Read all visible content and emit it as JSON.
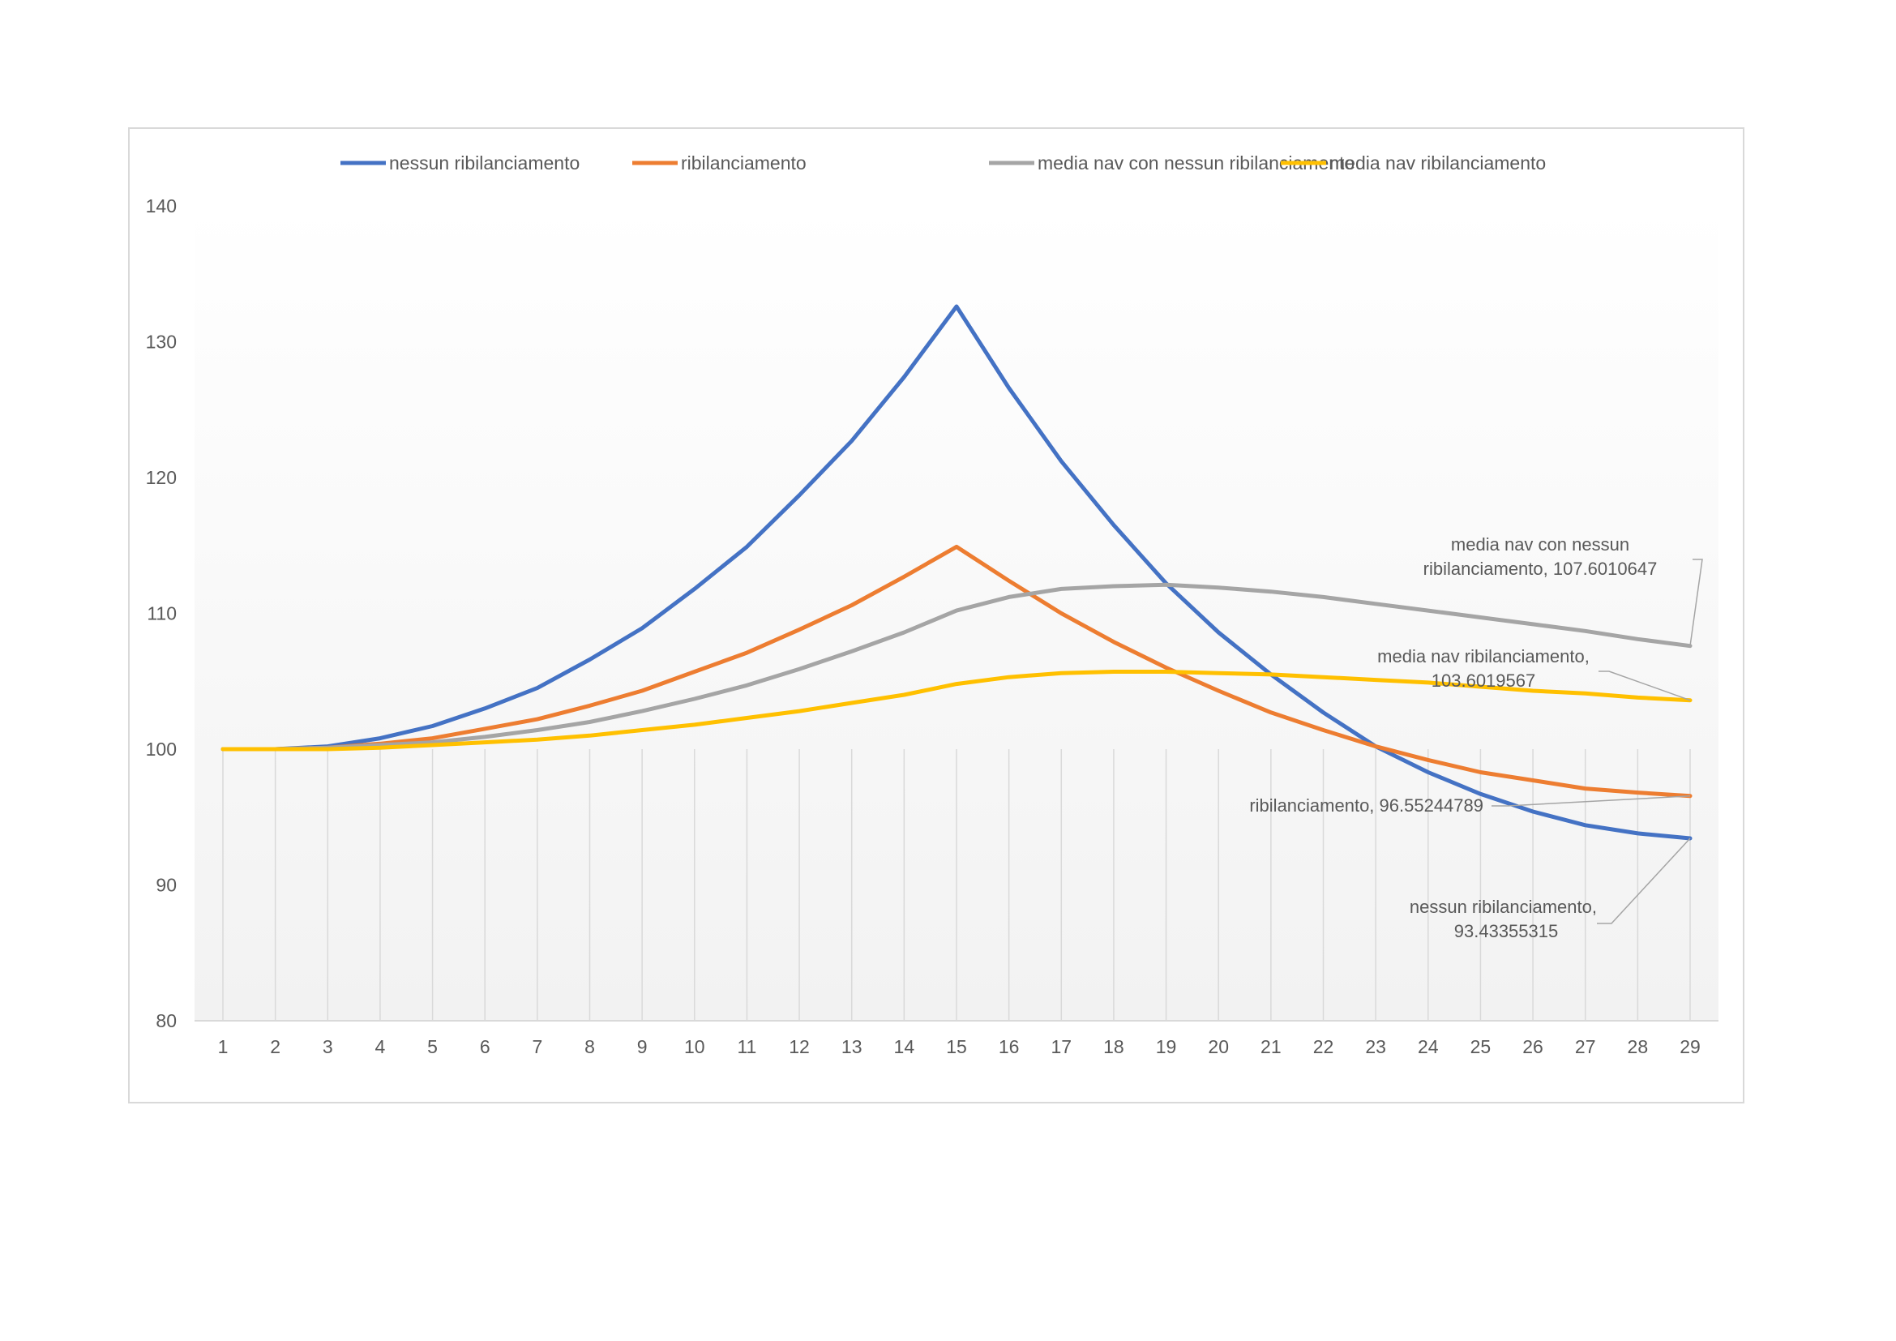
{
  "chart_data": {
    "type": "line",
    "x": [
      1,
      2,
      3,
      4,
      5,
      6,
      7,
      8,
      9,
      10,
      11,
      12,
      13,
      14,
      15,
      16,
      17,
      18,
      19,
      20,
      21,
      22,
      23,
      24,
      25,
      26,
      27,
      28,
      29
    ],
    "ylim": [
      80,
      140
    ],
    "yticks": [
      80,
      90,
      100,
      110,
      120,
      130,
      140
    ],
    "grid": "vertical",
    "legend_position": "top",
    "series": [
      {
        "name": "nessun ribilanciamento",
        "color": "#4472c4",
        "values": [
          100,
          100,
          100.2,
          100.8,
          101.7,
          103.0,
          104.5,
          106.6,
          108.9,
          111.8,
          114.9,
          118.7,
          122.7,
          127.4,
          132.6,
          126.6,
          121.2,
          116.5,
          112.2,
          108.6,
          105.5,
          102.7,
          100.2,
          98.3,
          96.7,
          95.4,
          94.4,
          93.8,
          93.43355315
        ]
      },
      {
        "name": "ribilanciamento",
        "color": "#ed7d31",
        "values": [
          100,
          100,
          100.1,
          100.4,
          100.8,
          101.5,
          102.2,
          103.2,
          104.3,
          105.7,
          107.1,
          108.8,
          110.6,
          112.7,
          114.9,
          112.4,
          110.0,
          107.9,
          106.0,
          104.3,
          102.7,
          101.4,
          100.2,
          99.2,
          98.3,
          97.7,
          97.1,
          96.8,
          96.55244789
        ]
      },
      {
        "name": "media nav con nessun ribilanciamento",
        "color": "#a5a5a5",
        "values": [
          100,
          100,
          100.1,
          100.3,
          100.5,
          100.9,
          101.4,
          102.0,
          102.8,
          103.7,
          104.7,
          105.9,
          107.2,
          108.6,
          110.2,
          111.2,
          111.8,
          112.0,
          112.1,
          111.9,
          111.6,
          111.2,
          110.7,
          110.2,
          109.7,
          109.2,
          108.7,
          108.1,
          107.6010647
        ]
      },
      {
        "name": "media nav ribilanciamento",
        "color": "#ffc000",
        "values": [
          100,
          100,
          100.0,
          100.1,
          100.3,
          100.5,
          100.7,
          101.0,
          101.4,
          101.8,
          102.3,
          102.8,
          103.4,
          104.0,
          104.8,
          105.3,
          105.6,
          105.7,
          105.7,
          105.6,
          105.5,
          105.3,
          105.1,
          104.9,
          104.6,
          104.3,
          104.1,
          103.8,
          103.6019567
        ]
      }
    ],
    "annotations": [
      {
        "series": "media nav con nessun ribilanciamento",
        "lines": [
          "media nav con nessun",
          "ribilanciamento, 107.6010647"
        ]
      },
      {
        "series": "media nav ribilanciamento",
        "lines": [
          "media nav ribilanciamento,",
          "103.6019567"
        ]
      },
      {
        "series": "ribilanciamento",
        "lines": [
          "ribilanciamento, 96.55244789"
        ]
      },
      {
        "series": "nessun ribilanciamento",
        "lines": [
          "nessun ribilanciamento,",
          "93.43355315"
        ]
      }
    ]
  }
}
